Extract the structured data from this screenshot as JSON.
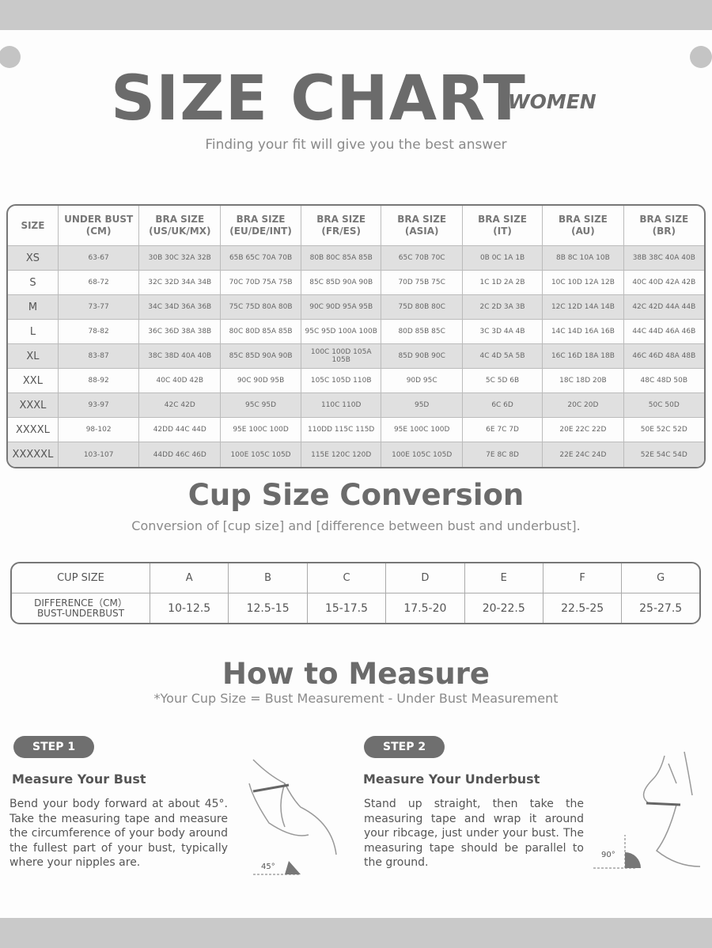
{
  "header": {
    "title": "SIZE CHART",
    "tag": "WOMEN",
    "subtitle": "Finding your fit will give you the best answer"
  },
  "size_table": {
    "headers": [
      [
        "SIZE",
        ""
      ],
      [
        "UNDER BUST",
        "(CM)"
      ],
      [
        "BRA SIZE",
        "(US/UK/MX)"
      ],
      [
        "BRA SIZE",
        "(EU/DE/INT)"
      ],
      [
        "BRA SIZE",
        "(FR/ES)"
      ],
      [
        "BRA SIZE",
        "(ASIA)"
      ],
      [
        "BRA SIZE",
        "(IT)"
      ],
      [
        "BRA SIZE",
        "(AU)"
      ],
      [
        "BRA SIZE",
        "(BR)"
      ]
    ],
    "rows": [
      [
        "XS",
        "63-67",
        "30B 30C 32A 32B",
        "65B 65C 70A 70B",
        "80B 80C 85A 85B",
        "65C 70B 70C",
        "0B 0C 1A 1B",
        "8B 8C 10A 10B",
        "38B 38C 40A 40B"
      ],
      [
        "S",
        "68-72",
        "32C 32D 34A 34B",
        "70C 70D 75A 75B",
        "85C 85D 90A 90B",
        "70D 75B 75C",
        "1C 1D 2A 2B",
        "10C 10D 12A 12B",
        "40C 40D 42A 42B"
      ],
      [
        "M",
        "73-77",
        "34C 34D 36A 36B",
        "75C 75D 80A 80B",
        "90C 90D 95A 95B",
        "75D 80B 80C",
        "2C 2D 3A 3B",
        "12C 12D 14A 14B",
        "42C 42D 44A 44B"
      ],
      [
        "L",
        "78-82",
        "36C 36D 38A 38B",
        "80C 80D 85A 85B",
        "95C 95D 100A 100B",
        "80D 85B 85C",
        "3C 3D 4A 4B",
        "14C 14D 16A 16B",
        "44C 44D 46A 46B"
      ],
      [
        "XL",
        "83-87",
        "38C 38D 40A 40B",
        "85C 85D 90A 90B",
        "100C 100D 105A 105B",
        "85D 90B 90C",
        "4C 4D 5A 5B",
        "16C 16D 18A 18B",
        "46C 46D 48A 48B"
      ],
      [
        "XXL",
        "88-92",
        "40C 40D 42B",
        "90C 90D 95B",
        "105C 105D 110B",
        "90D 95C",
        "5C 5D 6B",
        "18C 18D 20B",
        "48C 48D 50B"
      ],
      [
        "XXXL",
        "93-97",
        "42C 42D",
        "95C 95D",
        "110C 110D",
        "95D",
        "6C 6D",
        "20C 20D",
        "50C 50D"
      ],
      [
        "XXXXL",
        "98-102",
        "42DD 44C 44D",
        "95E 100C 100D",
        "110DD 115C 115D",
        "95E 100C 100D",
        "6E 7C 7D",
        "20E 22C 22D",
        "50E 52C 52D"
      ],
      [
        "XXXXXL",
        "103-107",
        "44DD 46C 46D",
        "100E 105C 105D",
        "115E 120C 120D",
        "100E 105C 105D",
        "7E 8C 8D",
        "22E 24C 24D",
        "52E 54C 54D"
      ]
    ]
  },
  "cup": {
    "title": "Cup Size Conversion",
    "subtitle": "Conversion of [cup size] and [difference between bust and underbust].",
    "row1_label": "CUP SIZE",
    "cups": [
      "A",
      "B",
      "C",
      "D",
      "E",
      "F",
      "G"
    ],
    "row2_label_1": "DIFFERENCE（CM）",
    "row2_label_2": "BUST-UNDERBUST",
    "diffs": [
      "10-12.5",
      "12.5-15",
      "15-17.5",
      "17.5-20",
      "20-22.5",
      "22.5-25",
      "25-27.5"
    ]
  },
  "measure": {
    "title": "How to Measure",
    "subtitle": "*Your Cup Size = Bust Measurement - Under Bust Measurement",
    "steps": [
      {
        "badge": "STEP 1",
        "heading": "Measure Your Bust",
        "text": "Bend your body forward at about 45°. Take the measuring tape and measure the circumference of your body around the fullest part of your bust, typically where your nipples are.",
        "angle": "45°"
      },
      {
        "badge": "STEP 2",
        "heading": "Measure Your Underbust",
        "text": "Stand up straight, then take the measuring tape and wrap it around your ribcage, just under your bust. The measuring tape should be parallel to the ground.",
        "angle": "90°"
      }
    ]
  }
}
